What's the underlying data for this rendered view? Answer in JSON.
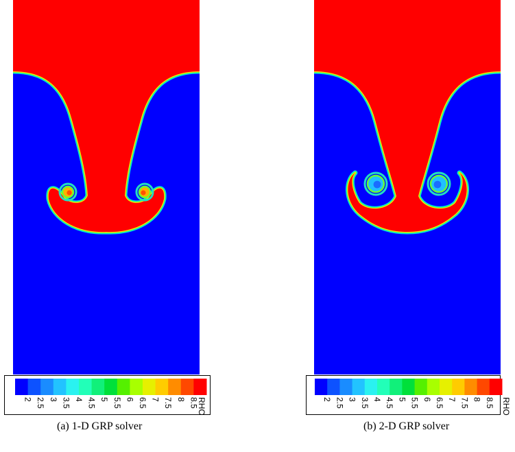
{
  "colorbar": {
    "label": "RHO",
    "ticks": [
      "2",
      "2.5",
      "3",
      "3.5",
      "4",
      "4.5",
      "5",
      "5.5",
      "6",
      "6.5",
      "7",
      "7.5",
      "8",
      "8.5"
    ],
    "colors": [
      "#0000ff",
      "#0d52ff",
      "#1a8cff",
      "#22c3ff",
      "#2af2f0",
      "#22ffb8",
      "#11f07a",
      "#00e03a",
      "#55f000",
      "#a8ff00",
      "#e6f000",
      "#ffcc00",
      "#ff8c00",
      "#ff4800",
      "#ff0000"
    ]
  },
  "fluid_colors": {
    "heavy": "#ff0000",
    "light": "#0000ff"
  },
  "panels": [
    {
      "caption": "(a) 1-D GRP solver"
    },
    {
      "caption": "(b) 2-D GRP solver"
    }
  ]
}
